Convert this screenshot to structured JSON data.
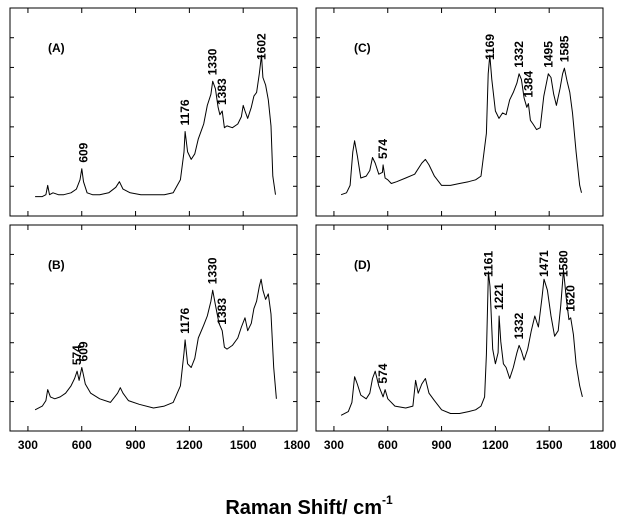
{
  "chart_data": {
    "type": "line",
    "title": "",
    "xlabel": "Raman Shift/ cm",
    "xlabel_superscript": "-1",
    "ylabel": "",
    "xlim": [
      200,
      1800
    ],
    "x_ticks": [
      300,
      600,
      900,
      1200,
      1500,
      1800
    ],
    "x_tick_labels": [
      "300",
      "600",
      "900",
      "1200",
      "1500",
      "1800"
    ],
    "y_ticks_labelled": false,
    "grid": false,
    "panels": [
      {
        "label": "(A)",
        "ylim": [
          0,
          100
        ],
        "x": [
          340,
          380,
          400,
          410,
          420,
          440,
          470,
          500,
          540,
          570,
          590,
          600,
          610,
          630,
          660,
          700,
          750,
          790,
          810,
          830,
          870,
          930,
          1000,
          1060,
          1110,
          1150,
          1170,
          1176,
          1190,
          1210,
          1230,
          1250,
          1280,
          1300,
          1320,
          1330,
          1345,
          1360,
          1370,
          1383,
          1395,
          1410,
          1440,
          1470,
          1490,
          1500,
          1510,
          1525,
          1545,
          1560,
          1575,
          1590,
          1602,
          1610,
          1625,
          1640,
          1655,
          1665,
          1680
        ],
        "y": [
          4,
          4,
          5,
          10,
          5,
          6,
          5,
          5,
          6,
          8,
          13,
          19,
          12,
          6,
          5,
          5,
          6,
          9,
          12,
          8,
          6,
          5,
          5,
          5,
          6,
          13,
          28,
          39,
          28,
          24,
          27,
          35,
          43,
          53,
          59,
          66,
          62,
          52,
          48,
          50,
          41,
          42,
          41,
          43,
          47,
          53,
          50,
          46,
          52,
          58,
          60,
          70,
          80,
          68,
          64,
          56,
          42,
          15,
          5
        ],
        "peak_labels": [
          {
            "x": 609,
            "text": "609"
          },
          {
            "x": 1176,
            "text": "1176"
          },
          {
            "x": 1330,
            "text": "1330"
          },
          {
            "x": 1383,
            "text": "1383"
          },
          {
            "x": 1602,
            "text": "1602"
          }
        ]
      },
      {
        "label": "(C)",
        "ylim": [
          0,
          100
        ],
        "x": [
          340,
          370,
          390,
          405,
          415,
          430,
          450,
          480,
          500,
          515,
          530,
          550,
          570,
          574,
          585,
          600,
          620,
          650,
          700,
          750,
          790,
          810,
          830,
          860,
          900,
          950,
          1000,
          1050,
          1090,
          1120,
          1150,
          1160,
          1169,
          1180,
          1200,
          1220,
          1240,
          1260,
          1280,
          1300,
          1320,
          1332,
          1345,
          1360,
          1375,
          1384,
          1395,
          1410,
          1430,
          1450,
          1470,
          1495,
          1510,
          1525,
          1540,
          1560,
          1575,
          1585,
          1600,
          1615,
          1630,
          1650,
          1670,
          1680
        ],
        "y": [
          5,
          6,
          10,
          28,
          34,
          26,
          14,
          15,
          18,
          25,
          22,
          16,
          17,
          21,
          14,
          13,
          11,
          12,
          14,
          16,
          22,
          24,
          21,
          15,
          10,
          10,
          11,
          12,
          13,
          15,
          38,
          70,
          80,
          67,
          50,
          46,
          49,
          48,
          56,
          60,
          65,
          70,
          67,
          57,
          52,
          54,
          45,
          43,
          40,
          41,
          58,
          70,
          68,
          59,
          53,
          62,
          70,
          73,
          66,
          60,
          49,
          28,
          10,
          6
        ],
        "peak_labels": [
          {
            "x": 574,
            "text": "574"
          },
          {
            "x": 1169,
            "text": "1169"
          },
          {
            "x": 1332,
            "text": "1332"
          },
          {
            "x": 1384,
            "text": "1384"
          },
          {
            "x": 1495,
            "text": "1495"
          },
          {
            "x": 1585,
            "text": "1585"
          }
        ]
      },
      {
        "label": "(B)",
        "ylim": [
          0,
          100
        ],
        "x": [
          340,
          380,
          400,
          410,
          425,
          450,
          480,
          510,
          540,
          560,
          574,
          585,
          600,
          609,
          620,
          650,
          700,
          760,
          800,
          815,
          830,
          860,
          920,
          1000,
          1060,
          1110,
          1150,
          1170,
          1176,
          1190,
          1210,
          1230,
          1250,
          1280,
          1300,
          1320,
          1330,
          1345,
          1365,
          1383,
          1395,
          1410,
          1440,
          1470,
          1490,
          1510,
          1525,
          1545,
          1560,
          1575,
          1590,
          1600,
          1610,
          1625,
          1640,
          1655,
          1670,
          1685
        ],
        "y": [
          5,
          7,
          10,
          16,
          12,
          11,
          12,
          14,
          18,
          22,
          26,
          21,
          28,
          24,
          19,
          14,
          11,
          9,
          14,
          17,
          14,
          10,
          8,
          6,
          7,
          9,
          18,
          36,
          43,
          30,
          28,
          33,
          44,
          51,
          56,
          64,
          70,
          62,
          52,
          48,
          39,
          38,
          40,
          44,
          50,
          55,
          48,
          52,
          60,
          64,
          72,
          76,
          70,
          65,
          68,
          57,
          28,
          11
        ],
        "peak_labels": [
          {
            "x": 574,
            "text": "574"
          },
          {
            "x": 609,
            "text": "609"
          },
          {
            "x": 1176,
            "text": "1176"
          },
          {
            "x": 1330,
            "text": "1330"
          },
          {
            "x": 1383,
            "text": "1383"
          }
        ]
      },
      {
        "label": "(D)",
        "ylim": [
          0,
          100
        ],
        "x": [
          340,
          380,
          400,
          415,
          430,
          450,
          480,
          500,
          515,
          530,
          550,
          570,
          574,
          585,
          600,
          640,
          700,
          740,
          755,
          770,
          790,
          810,
          830,
          860,
          900,
          950,
          1000,
          1050,
          1090,
          1120,
          1140,
          1150,
          1161,
          1170,
          1185,
          1200,
          1215,
          1221,
          1230,
          1245,
          1260,
          1280,
          1300,
          1320,
          1332,
          1345,
          1360,
          1380,
          1400,
          1420,
          1440,
          1460,
          1471,
          1490,
          1510,
          1530,
          1550,
          1565,
          1580,
          1595,
          1610,
          1620,
          1635,
          1650,
          1670,
          1685
        ],
        "y": [
          2,
          4,
          9,
          23,
          19,
          13,
          11,
          14,
          22,
          26,
          18,
          13,
          12,
          16,
          11,
          7,
          6,
          7,
          21,
          14,
          19,
          22,
          14,
          10,
          5,
          3,
          3,
          4,
          5,
          7,
          12,
          35,
          80,
          72,
          38,
          30,
          36,
          56,
          42,
          30,
          28,
          22,
          28,
          36,
          40,
          37,
          32,
          38,
          48,
          56,
          50,
          66,
          76,
          70,
          56,
          45,
          48,
          62,
          81,
          66,
          54,
          55,
          46,
          30,
          18,
          12
        ],
        "peak_labels": [
          {
            "x": 574,
            "text": "574"
          },
          {
            "x": 1161,
            "text": "1161"
          },
          {
            "x": 1221,
            "text": "1221"
          },
          {
            "x": 1332,
            "text": "1332"
          },
          {
            "x": 1471,
            "text": "1471"
          },
          {
            "x": 1580,
            "text": "1580"
          },
          {
            "x": 1620,
            "text": "1620"
          }
        ]
      }
    ]
  }
}
